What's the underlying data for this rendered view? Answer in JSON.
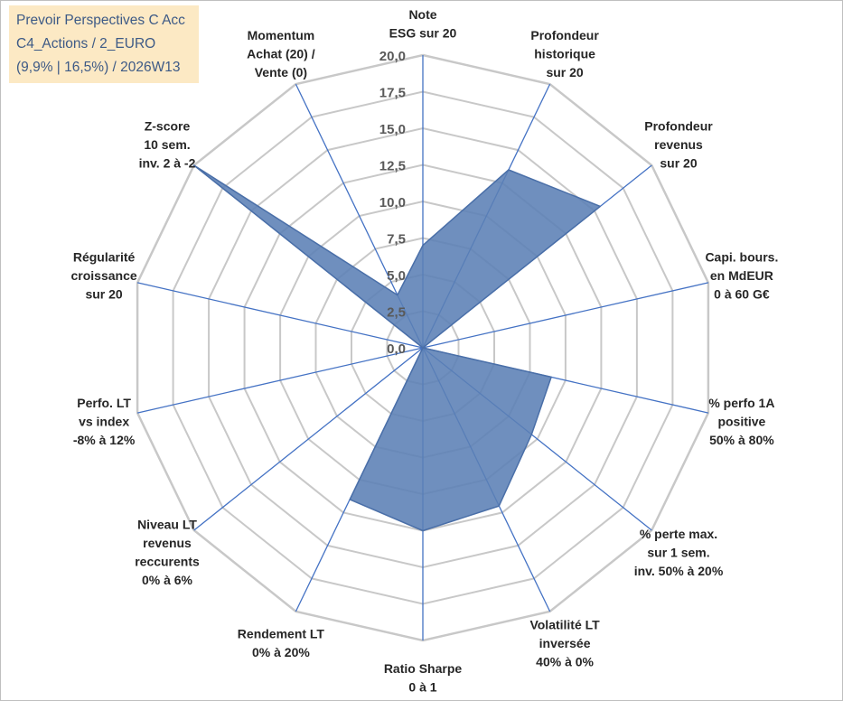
{
  "info_box": {
    "line1": "Prevoir Perspectives C Acc",
    "line2": "C4_Actions / 2_EURO",
    "line3": "(9,9% | 16,5%) / 2026W13"
  },
  "colors": {
    "fill": "#5b7fb5",
    "stroke": "#4a6fa8",
    "spoke": "#4472c4",
    "grid": "#c8c8c8",
    "info_bg": "#fce9c4",
    "info_text": "#3d5a86"
  },
  "chart_data": {
    "type": "radar",
    "rmax": 20,
    "ticks": [
      "0,0",
      "2,5",
      "5,0",
      "7,5",
      "10,0",
      "12,5",
      "15,0",
      "17,5",
      "20,0"
    ],
    "grid_levels": [
      2.5,
      5,
      7.5,
      10,
      12.5,
      15,
      17.5,
      20
    ],
    "axes": [
      {
        "label": [
          "Note",
          "ESG sur 20"
        ],
        "value": 7
      },
      {
        "label": [
          "Profondeur",
          "historique",
          "sur 20"
        ],
        "value": 13.5
      },
      {
        "label": [
          "Profondeur",
          "revenus",
          "sur 20"
        ],
        "value": 15.5
      },
      {
        "label": [
          "Capi. bours.",
          "en MdEUR",
          "0 à 60 G€"
        ],
        "value": 0
      },
      {
        "label": [
          "% perfo 1A",
          "positive",
          "50% à 80%"
        ],
        "value": 9
      },
      {
        "label": [
          "% perte max.",
          "sur 1 sem.",
          "inv. 50% à 20%"
        ],
        "value": 9.5
      },
      {
        "label": [
          "Volatilité LT",
          "inversée",
          "40% à 0%"
        ],
        "value": 12
      },
      {
        "label": [
          "Ratio Sharpe",
          "0 à 1"
        ],
        "value": 12.5
      },
      {
        "label": [
          "Rendement LT",
          "0% à 20%"
        ],
        "value": 11.5
      },
      {
        "label": [
          "Niveau LT",
          "revenus",
          "reccurents",
          "0% à 6%"
        ],
        "value": 0
      },
      {
        "label": [
          "Perfo. LT",
          "vs index",
          "-8% à 12%"
        ],
        "value": 0
      },
      {
        "label": [
          "Régularité",
          "croissance",
          "sur 20"
        ],
        "value": 0
      },
      {
        "label": [
          "Z-score",
          "10 sem.",
          "inv. 2 à -2"
        ],
        "value": 20
      },
      {
        "label": [
          "Momentum",
          "Achat (20) /",
          "Vente (0)"
        ],
        "value": 4
      }
    ]
  }
}
